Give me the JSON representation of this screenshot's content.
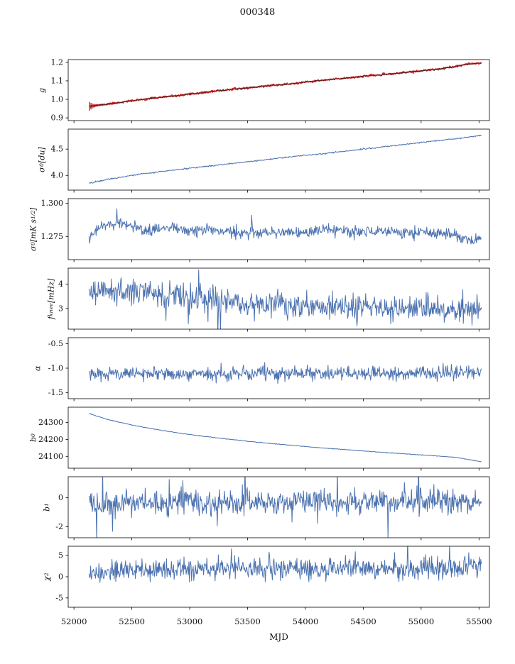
{
  "chart_data": {
    "type": "line",
    "title": "000348",
    "xlabel": "MJD",
    "grid": false,
    "legend": "none",
    "xlim": [
      51950,
      55590
    ],
    "xticks": [
      52000,
      52500,
      53000,
      53500,
      54000,
      54500,
      55000,
      55500
    ],
    "xtick_labels": [
      "52000",
      "52500",
      "53000",
      "53500",
      "54000",
      "54500",
      "55000",
      "55500"
    ],
    "x_data_range": [
      52130,
      55520
    ],
    "n_points": 720,
    "colors": {
      "blue": "#4c72b0",
      "red": "#d62728",
      "dark": "#222222",
      "spine": "#000000"
    },
    "panels": [
      {
        "name": "g",
        "ylabel": "g",
        "ylim": [
          0.885,
          1.215
        ],
        "yticks": [
          0.9,
          1.0,
          1.1,
          1.2
        ],
        "ytick_labels": [
          "0.9",
          "1.0",
          "1.1",
          "1.2"
        ],
        "color": "red",
        "lw": 1.8,
        "seed": 11,
        "noise": 0.0025,
        "overlay": {
          "seed": 12,
          "noise": 0.0018,
          "lw": 0.7,
          "color": "dark"
        },
        "errorbars": {
          "x_start": 52135,
          "x_end": 52265,
          "n": 12,
          "err_base": 0.003,
          "err_amp": 0.021,
          "decay": 4
        },
        "anchors": [
          [
            52130,
            0.962
          ],
          [
            52300,
            0.975
          ],
          [
            52500,
            0.992
          ],
          [
            52700,
            1.008
          ],
          [
            52900,
            1.02
          ],
          [
            53100,
            1.035
          ],
          [
            53300,
            1.05
          ],
          [
            53500,
            1.062
          ],
          [
            53700,
            1.075
          ],
          [
            53900,
            1.085
          ],
          [
            54100,
            1.1
          ],
          [
            54300,
            1.112
          ],
          [
            54500,
            1.125
          ],
          [
            54700,
            1.135
          ],
          [
            54900,
            1.148
          ],
          [
            55100,
            1.16
          ],
          [
            55250,
            1.172
          ],
          [
            55400,
            1.19
          ],
          [
            55520,
            1.197
          ]
        ]
      },
      {
        "name": "sigma0-du",
        "ylabel": "σ_{0} [du]",
        "ylim": [
          3.72,
          4.88
        ],
        "yticks": [
          4.0,
          4.5
        ],
        "ytick_labels": [
          "4.0",
          "4.5"
        ],
        "color": "blue",
        "lw": 1.0,
        "seed": 22,
        "noise": 0.006,
        "anchors": [
          [
            52130,
            3.85
          ],
          [
            52300,
            3.93
          ],
          [
            52500,
            4.0
          ],
          [
            52700,
            4.06
          ],
          [
            52900,
            4.11
          ],
          [
            53100,
            4.16
          ],
          [
            53300,
            4.21
          ],
          [
            53500,
            4.26
          ],
          [
            53700,
            4.31
          ],
          [
            53900,
            4.36
          ],
          [
            54100,
            4.4
          ],
          [
            54300,
            4.45
          ],
          [
            54500,
            4.5
          ],
          [
            54700,
            4.55
          ],
          [
            54900,
            4.6
          ],
          [
            55100,
            4.65
          ],
          [
            55300,
            4.7
          ],
          [
            55520,
            4.76
          ]
        ]
      },
      {
        "name": "sigma0-mk",
        "ylabel": "σ_{0}[mK s^{1/2}]",
        "ylim": [
          1.2575,
          1.3035
        ],
        "yticks": [
          1.275,
          1.3
        ],
        "ytick_labels": [
          "1.275",
          "1.300"
        ],
        "color": "blue",
        "lw": 1.0,
        "seed": 33,
        "noise": 0.0022,
        "tail_p": 0.01,
        "tail_mult": 1.8,
        "anchors": [
          [
            52130,
            1.2755
          ],
          [
            52200,
            1.28
          ],
          [
            52300,
            1.284
          ],
          [
            52450,
            1.285
          ],
          [
            52600,
            1.279
          ],
          [
            52800,
            1.281
          ],
          [
            53000,
            1.2795
          ],
          [
            53200,
            1.28
          ],
          [
            53400,
            1.278
          ],
          [
            53600,
            1.2775
          ],
          [
            53800,
            1.2785
          ],
          [
            54000,
            1.277
          ],
          [
            54150,
            1.281
          ],
          [
            54300,
            1.279
          ],
          [
            54500,
            1.278
          ],
          [
            54700,
            1.2785
          ],
          [
            54900,
            1.277
          ],
          [
            55100,
            1.2775
          ],
          [
            55250,
            1.2765
          ],
          [
            55400,
            1.2715
          ],
          [
            55520,
            1.274
          ]
        ]
      },
      {
        "name": "fknee",
        "ylabel": "f_{knee} [mHz]",
        "ylim": [
          2.15,
          4.65
        ],
        "yticks": [
          3,
          4
        ],
        "ytick_labels": [
          "3",
          "4"
        ],
        "color": "blue",
        "lw": 1.0,
        "seed": 44,
        "noise": 0.26,
        "tail_p": 0.06,
        "tail_mult": 1.8,
        "anchors": [
          [
            52130,
            3.72
          ],
          [
            52300,
            3.72
          ],
          [
            52500,
            3.65
          ],
          [
            52700,
            3.55
          ],
          [
            52900,
            3.45
          ],
          [
            53100,
            3.35
          ],
          [
            53300,
            3.28
          ],
          [
            53500,
            3.2
          ],
          [
            53700,
            3.12
          ],
          [
            53900,
            3.07
          ],
          [
            54100,
            3.02
          ],
          [
            54400,
            3.0
          ],
          [
            54800,
            2.98
          ],
          [
            55200,
            2.95
          ],
          [
            55520,
            2.93
          ]
        ]
      },
      {
        "name": "alpha",
        "ylabel": "α",
        "ylim": [
          -1.62,
          -0.38
        ],
        "yticks": [
          -1.5,
          -1.0,
          -0.5
        ],
        "ytick_labels": [
          "-1.5",
          "-1.0",
          "-0.5"
        ],
        "color": "blue",
        "lw": 1.0,
        "seed": 55,
        "noise": 0.068,
        "tail_p": 0.02,
        "tail_mult": 1.6,
        "anchors": [
          [
            52130,
            -1.12
          ],
          [
            55520,
            -1.1
          ]
        ]
      },
      {
        "name": "b0",
        "ylabel": "b_{0}",
        "ylim": [
          24030,
          24390
        ],
        "yticks": [
          24100,
          24200,
          24300
        ],
        "ytick_labels": [
          "24100",
          "24200",
          "24300"
        ],
        "color": "blue",
        "lw": 1.0,
        "seed": 66,
        "noise": 0.9,
        "anchors": [
          [
            52130,
            24352
          ],
          [
            52300,
            24316
          ],
          [
            52500,
            24285
          ],
          [
            52700,
            24260
          ],
          [
            52900,
            24238
          ],
          [
            53100,
            24220
          ],
          [
            53300,
            24204
          ],
          [
            53500,
            24189
          ],
          [
            53700,
            24176
          ],
          [
            53900,
            24164
          ],
          [
            54100,
            24152
          ],
          [
            54300,
            24142
          ],
          [
            54500,
            24132
          ],
          [
            54700,
            24122
          ],
          [
            54900,
            24113
          ],
          [
            55100,
            24104
          ],
          [
            55300,
            24094
          ],
          [
            55400,
            24082
          ],
          [
            55520,
            24068
          ]
        ]
      },
      {
        "name": "b1",
        "ylabel": "b_{1}",
        "ylim": [
          -2.75,
          1.45
        ],
        "yticks": [
          -2,
          0
        ],
        "ytick_labels": [
          "-2",
          "0"
        ],
        "color": "blue",
        "lw": 1.0,
        "seed": 77,
        "noise": 0.42,
        "tail_p": 0.05,
        "tail_mult": 2.2,
        "anchors": [
          [
            52130,
            -0.4
          ],
          [
            53000,
            -0.3
          ],
          [
            54000,
            -0.28
          ],
          [
            55000,
            -0.3
          ],
          [
            55520,
            -0.25
          ]
        ]
      },
      {
        "name": "chi2",
        "ylabel": "χ^{2}",
        "ylim": [
          -7.2,
          7.2
        ],
        "yticks": [
          -5,
          0,
          5
        ],
        "ytick_labels": [
          "-5",
          "0",
          "5"
        ],
        "color": "blue",
        "lw": 1.0,
        "seed": 88,
        "noise": 1.25,
        "tail_p": 0.02,
        "tail_mult": 1.5,
        "anchors": [
          [
            52130,
            1.0
          ],
          [
            52400,
            1.5
          ],
          [
            52800,
            1.8
          ],
          [
            53500,
            1.9
          ],
          [
            54500,
            2.0
          ],
          [
            55200,
            2.1
          ],
          [
            55520,
            2.3
          ]
        ]
      }
    ]
  }
}
